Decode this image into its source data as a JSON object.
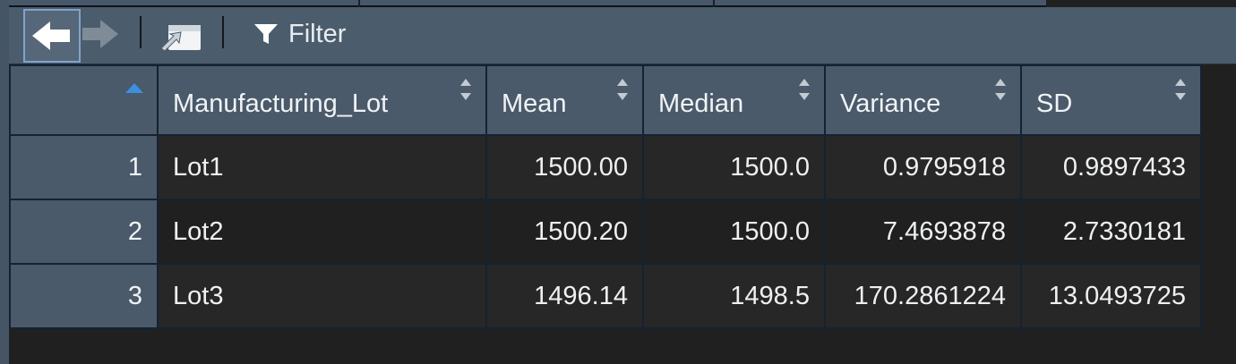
{
  "toolbar": {
    "back_icon": "arrow-left-icon",
    "forward_icon": "arrow-right-icon",
    "popout_icon": "popout-window-icon",
    "filter_icon": "funnel-icon",
    "filter_label": "Filter"
  },
  "table": {
    "columns": [
      {
        "key": "row",
        "label": ""
      },
      {
        "key": "Manufacturing_Lot",
        "label": "Manufacturing_Lot"
      },
      {
        "key": "Mean",
        "label": "Mean"
      },
      {
        "key": "Median",
        "label": "Median"
      },
      {
        "key": "Variance",
        "label": "Variance"
      },
      {
        "key": "SD",
        "label": "SD"
      }
    ],
    "rows": [
      {
        "row": "1",
        "Manufacturing_Lot": "Lot1",
        "Mean": "1500.00",
        "Median": "1500.0",
        "Variance": "0.9795918",
        "SD": "0.9897433"
      },
      {
        "row": "2",
        "Manufacturing_Lot": "Lot2",
        "Mean": "1500.20",
        "Median": "1500.0",
        "Variance": "7.4693878",
        "SD": "2.7330181"
      },
      {
        "row": "3",
        "Manufacturing_Lot": "Lot3",
        "Mean": "1496.14",
        "Median": "1498.5",
        "Variance": "170.2861224",
        "SD": "13.0493725"
      }
    ]
  },
  "colors": {
    "accent_sort": "#3d8fe0",
    "header_bg": "#4a5a6a",
    "toolbar_bg": "#4b5c6c",
    "cell_bg": "#272727",
    "grid_line": "#142232"
  }
}
